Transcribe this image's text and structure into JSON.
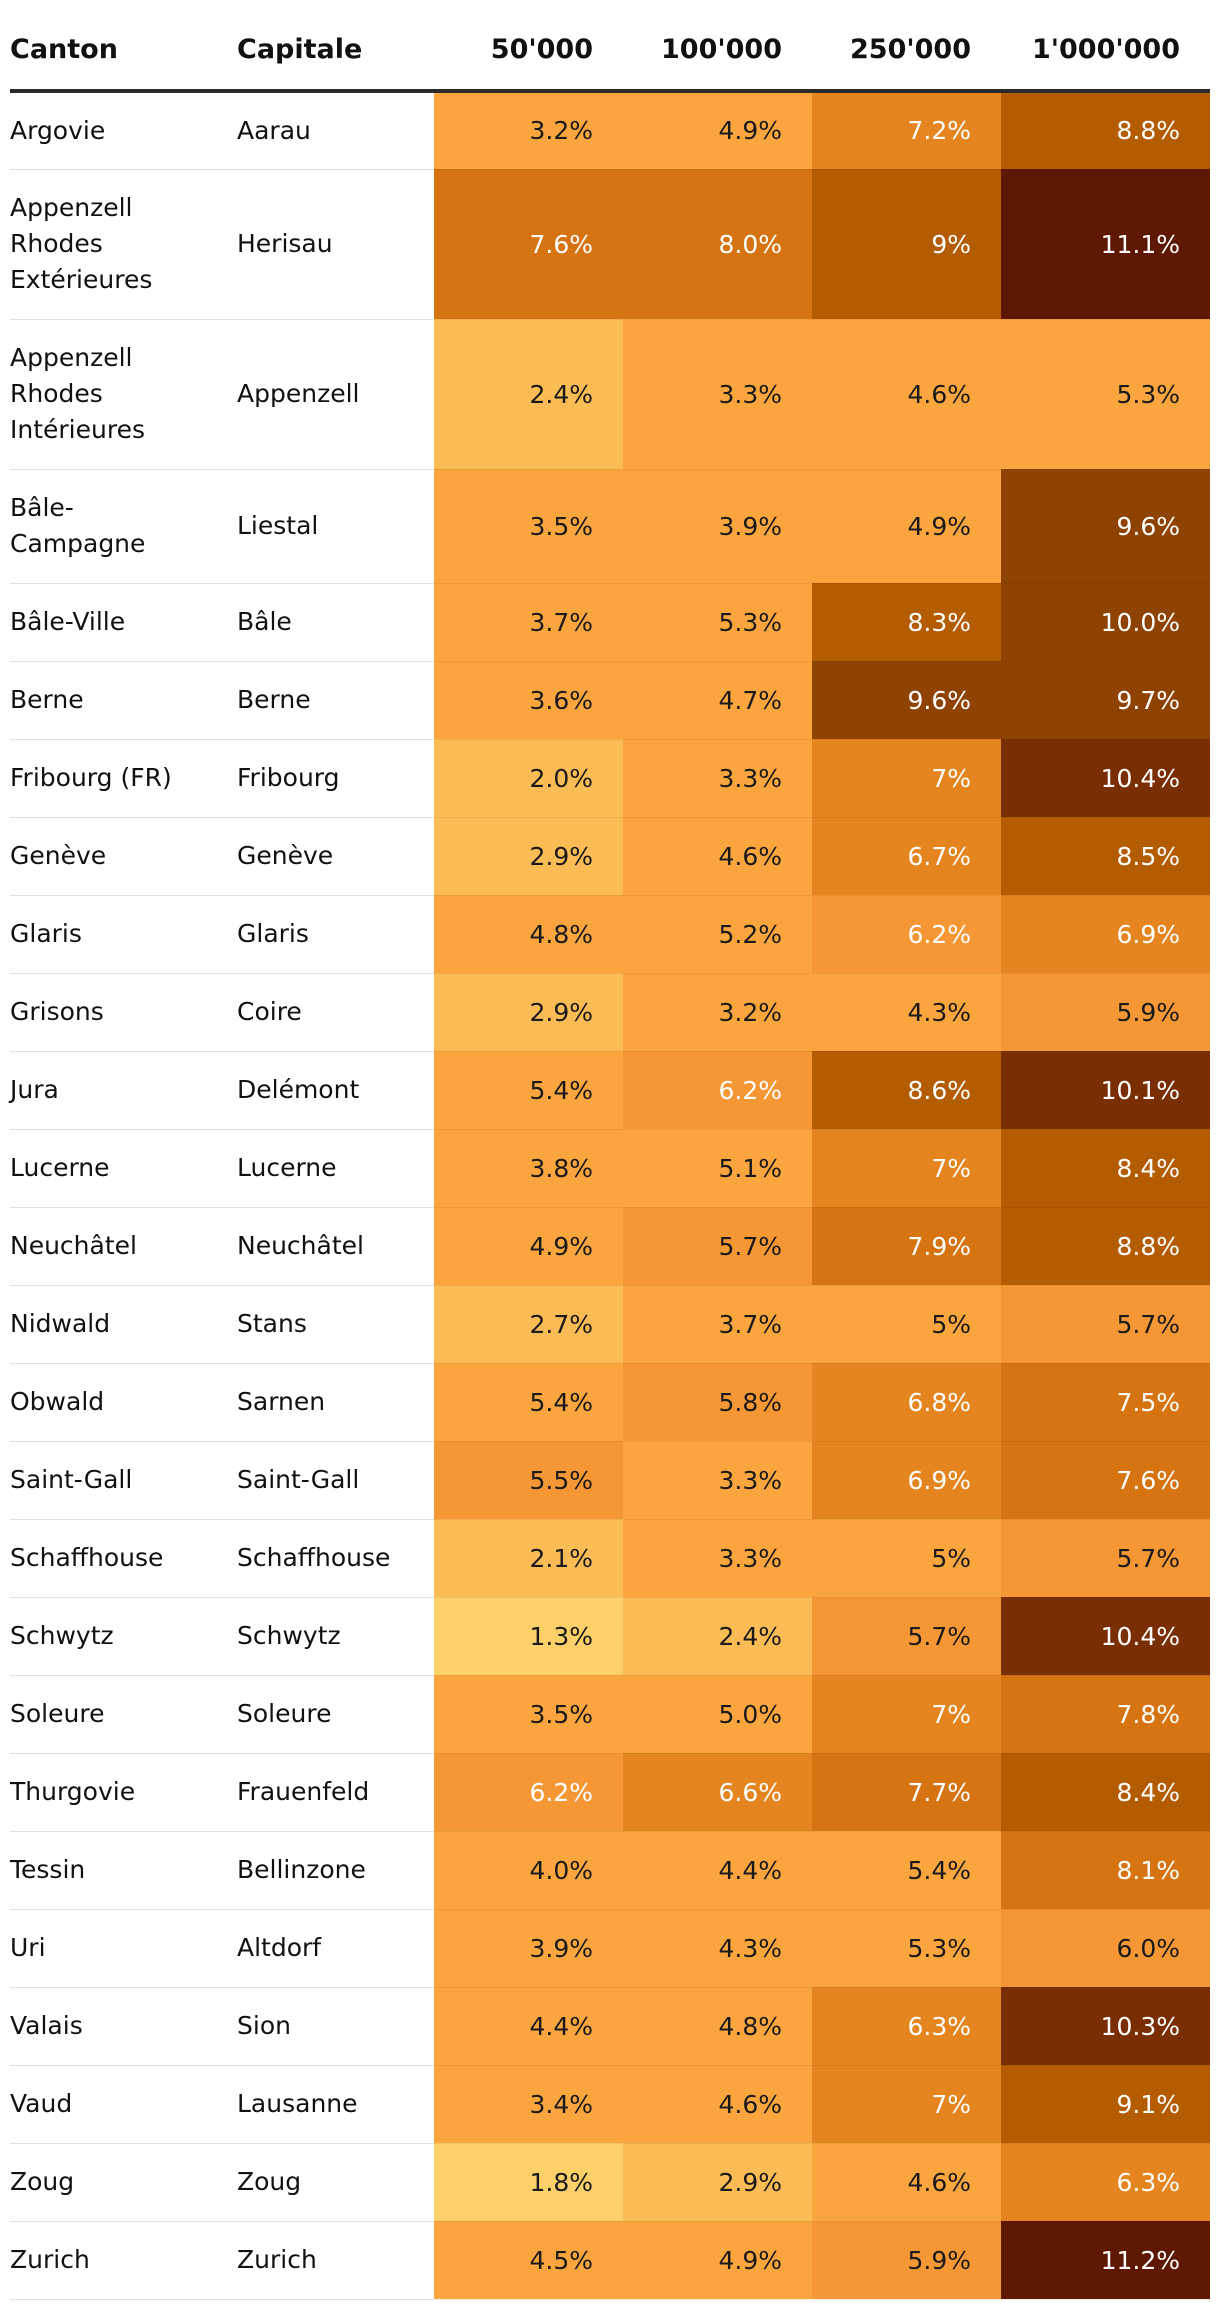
{
  "headers": [
    "Canton",
    "Capitale",
    "50'000",
    "100'000",
    "250'000",
    "1'000'000"
  ],
  "rows": [
    {
      "canton": "Argovie",
      "capitale": "Aarau",
      "values": [
        "3.2%",
        "4.9%",
        "7.2%",
        "8.8%"
      ]
    },
    {
      "canton": "Appenzell Rhodes Extérieures",
      "capitale": "Herisau",
      "values": [
        "7.6%",
        "8.0%",
        "9%",
        "11.1%"
      ]
    },
    {
      "canton": "Appenzell Rhodes Intérieures",
      "capitale": "Appenzell",
      "values": [
        "2.4%",
        "3.3%",
        "4.6%",
        "5.3%"
      ]
    },
    {
      "canton": "Bâle-Campagne",
      "capitale": "Liestal",
      "values": [
        "3.5%",
        "3.9%",
        "4.9%",
        "9.6%"
      ]
    },
    {
      "canton": "Bâle-Ville",
      "capitale": "Bâle",
      "values": [
        "3.7%",
        "5.3%",
        "8.3%",
        "10.0%"
      ]
    },
    {
      "canton": "Berne",
      "capitale": "Berne",
      "values": [
        "3.6%",
        "4.7%",
        "9.6%",
        "9.7%"
      ]
    },
    {
      "canton": "Fribourg (FR)",
      "capitale": "Fribourg",
      "values": [
        "2.0%",
        "3.3%",
        "7%",
        "10.4%"
      ]
    },
    {
      "canton": "Genève",
      "capitale": "Genève",
      "values": [
        "2.9%",
        "4.6%",
        "6.7%",
        "8.5%"
      ]
    },
    {
      "canton": "Glaris",
      "capitale": "Glaris",
      "values": [
        "4.8%",
        "5.2%",
        "6.2%",
        "6.9%"
      ]
    },
    {
      "canton": "Grisons",
      "capitale": "Coire",
      "values": [
        "2.9%",
        "3.2%",
        "4.3%",
        "5.9%"
      ]
    },
    {
      "canton": "Jura",
      "capitale": "Delémont",
      "values": [
        "5.4%",
        "6.2%",
        "8.6%",
        "10.1%"
      ]
    },
    {
      "canton": "Lucerne",
      "capitale": "Lucerne",
      "values": [
        "3.8%",
        "5.1%",
        "7%",
        "8.4%"
      ]
    },
    {
      "canton": "Neuchâtel",
      "capitale": "Neuchâtel",
      "values": [
        "4.9%",
        "5.7%",
        "7.9%",
        "8.8%"
      ]
    },
    {
      "canton": "Nidwald",
      "capitale": "Stans",
      "values": [
        "2.7%",
        "3.7%",
        "5%",
        "5.7%"
      ]
    },
    {
      "canton": "Obwald",
      "capitale": "Sarnen",
      "values": [
        "5.4%",
        "5.8%",
        "6.8%",
        "7.5%"
      ]
    },
    {
      "canton": "Saint-Gall",
      "capitale": "Saint-Gall",
      "values": [
        "5.5%",
        "3.3%",
        "6.9%",
        "7.6%"
      ]
    },
    {
      "canton": "Schaffhouse",
      "capitale": "Schaffhouse",
      "values": [
        "2.1%",
        "3.3%",
        "5%",
        "5.7%"
      ]
    },
    {
      "canton": "Schwytz",
      "capitale": "Schwytz",
      "values": [
        "1.3%",
        "2.4%",
        "5.7%",
        "10.4%"
      ]
    },
    {
      "canton": "Soleure",
      "capitale": "Soleure",
      "values": [
        "3.5%",
        "5.0%",
        "7%",
        "7.8%"
      ]
    },
    {
      "canton": "Thurgovie",
      "capitale": "Frauenfeld",
      "values": [
        "6.2%",
        "6.6%",
        "7.7%",
        "8.4%"
      ]
    },
    {
      "canton": "Tessin",
      "capitale": "Bellinzone",
      "values": [
        "4.0%",
        "4.4%",
        "5.4%",
        "8.1%"
      ]
    },
    {
      "canton": "Uri",
      "capitale": "Altdorf",
      "values": [
        "3.9%",
        "4.3%",
        "5.3%",
        "6.0%"
      ]
    },
    {
      "canton": "Valais",
      "capitale": "Sion",
      "values": [
        "4.4%",
        "4.8%",
        "6.3%",
        "10.3%"
      ]
    },
    {
      "canton": "Vaud",
      "capitale": "Lausanne",
      "values": [
        "3.4%",
        "4.6%",
        "7%",
        "9.1%"
      ]
    },
    {
      "canton": "Zoug",
      "capitale": "Zoug",
      "values": [
        "1.8%",
        "2.9%",
        "4.6%",
        "6.3%"
      ]
    },
    {
      "canton": "Zurich",
      "capitale": "Zurich",
      "values": [
        "4.5%",
        "4.9%",
        "5.9%",
        "11.2%"
      ]
    }
  ],
  "heat_colors": {
    "very_light": "#fdd06a",
    "light": "#fcbc55",
    "base": "#fba53f",
    "medium": "#f69735",
    "orange": "#e5851f",
    "dark_orange": "#d57410",
    "brown": "#b35c02",
    "dark_brown": "#8f4302",
    "darker_brown": "#7a2e04",
    "darkest": "#5e1802"
  }
}
